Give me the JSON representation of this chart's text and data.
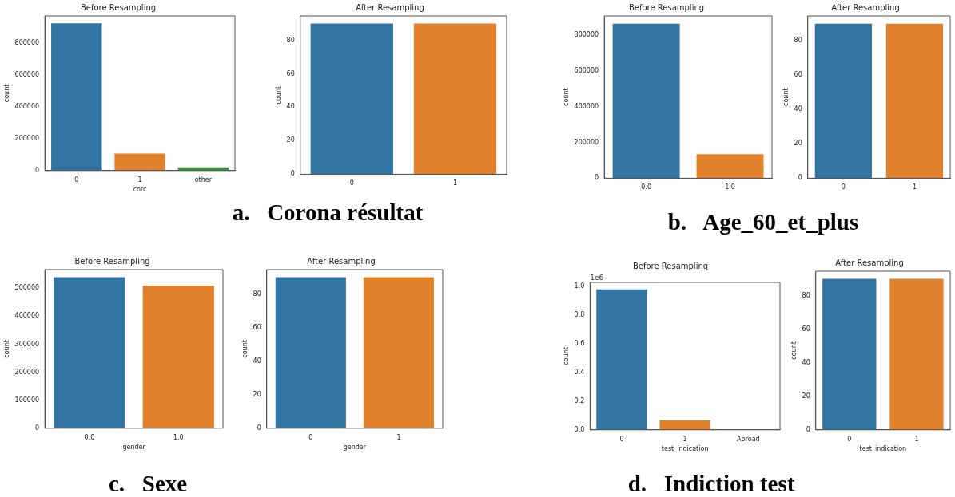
{
  "chart_data": [
    {
      "type": "bar",
      "title": "Before Resampling",
      "xlabel": "corc",
      "ylabel": "count",
      "categories": [
        "0",
        "1",
        "other"
      ],
      "colors": [
        "#3274a1",
        "#e1812c",
        "#3a923a"
      ],
      "values": [
        924000,
        107000,
        20000
      ],
      "ylim": [
        0,
        970000
      ],
      "yticks": [
        0,
        200000,
        400000,
        600000,
        800000
      ],
      "annotations": [
        "a.   Corona résultat"
      ]
    },
    {
      "type": "bar",
      "title": "After Resampling",
      "ylabel": "count",
      "categories": [
        "0",
        "1"
      ],
      "colors": [
        "#3274a1",
        "#e1812c"
      ],
      "values": [
        90,
        90
      ],
      "ylim": [
        0,
        94.5
      ],
      "yticks": [
        0,
        20,
        40,
        60,
        80
      ]
    },
    {
      "type": "bar",
      "title": "Before Resampling",
      "ylabel": "count",
      "categories": [
        "0.0",
        "1.0"
      ],
      "colors": [
        "#3274a1",
        "#e1812c"
      ],
      "values": [
        865000,
        135000
      ],
      "ylim": [
        0,
        908000
      ],
      "yticks": [
        0,
        200000,
        400000,
        600000,
        800000
      ],
      "annotations": [
        "b.   Age_60_et_plus"
      ]
    },
    {
      "type": "bar",
      "title": "After Resampling",
      "ylabel": "count",
      "categories": [
        "0",
        "1"
      ],
      "colors": [
        "#3274a1",
        "#e1812c"
      ],
      "values": [
        90,
        90
      ],
      "ylim": [
        0,
        94.5
      ],
      "yticks": [
        0,
        20,
        40,
        60,
        80
      ]
    },
    {
      "type": "bar",
      "title": "Before Resampling",
      "xlabel": "gender",
      "ylabel": "count",
      "categories": [
        "0.0",
        "1.0"
      ],
      "colors": [
        "#3274a1",
        "#e1812c"
      ],
      "values": [
        539000,
        509000
      ],
      "ylim": [
        0,
        566000
      ],
      "yticks": [
        0,
        100000,
        200000,
        300000,
        400000,
        500000
      ],
      "annotations": [
        "c.   Sexe"
      ]
    },
    {
      "type": "bar",
      "title": "After Resampling",
      "xlabel": "gender",
      "ylabel": "count",
      "categories": [
        "0",
        "1"
      ],
      "colors": [
        "#3274a1",
        "#e1812c"
      ],
      "values": [
        90,
        90
      ],
      "ylim": [
        0,
        94.5
      ],
      "yticks": [
        0,
        20,
        40,
        60,
        80
      ]
    },
    {
      "type": "bar",
      "title": "Before Resampling",
      "xlabel": "test_indication",
      "ylabel": "count",
      "categories": [
        "0",
        "1",
        "Abroad"
      ],
      "colors": [
        "#3274a1",
        "#e1812c",
        "#3a923a"
      ],
      "values": [
        0.979,
        0.066,
        0.001
      ],
      "ylim": [
        0,
        1.028
      ],
      "yticks": [
        {
          "value": 0,
          "label": "0.0"
        },
        {
          "value": 0.2,
          "label": "0.2"
        },
        {
          "value": 0.4,
          "label": "0.4"
        },
        {
          "value": 0.6,
          "label": "0.6"
        },
        {
          "value": 0.8,
          "label": "0.8"
        },
        {
          "value": 1,
          "label": "1.0"
        }
      ],
      "annotations": [
        "d.   Indiction test",
        "1e6"
      ]
    },
    {
      "type": "bar",
      "title": "After Resampling",
      "xlabel": "test_indication",
      "ylabel": "count",
      "categories": [
        "0",
        "1"
      ],
      "colors": [
        "#3274a1",
        "#e1812c"
      ],
      "values": [
        90,
        90
      ],
      "ylim": [
        0,
        94.5
      ],
      "yticks": [
        0,
        20,
        40,
        60,
        80
      ]
    }
  ]
}
